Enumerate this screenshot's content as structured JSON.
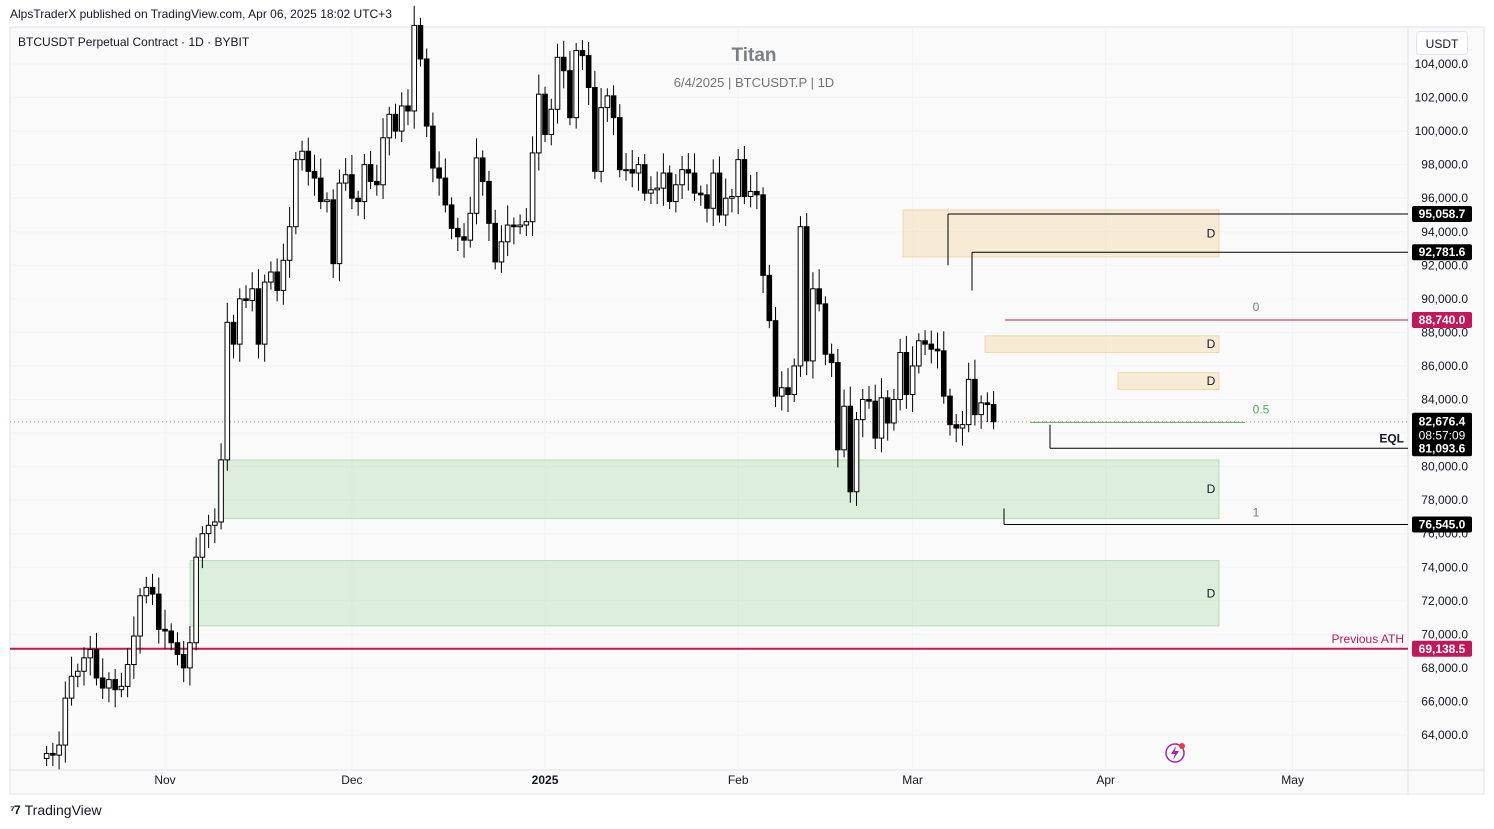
{
  "header": {
    "published": "AlpsTraderX published on TradingView.com, Apr 06, 2025 18:02 UTC+3",
    "symbol": "BTCUSDT Perpetual Contract · 1D · BYBIT",
    "currency": "USDT"
  },
  "watermark": {
    "title": "Titan",
    "subtitle": "6/4/2025 | BTCUSDT.P | 1D"
  },
  "footer": {
    "brand": "TradingView"
  },
  "colors": {
    "up": "#ffffff",
    "down": "#000000",
    "ath": "#c2185b",
    "zone_supply": "#f5d9a8",
    "zone_demand": "#a5d6a7",
    "fib": "#4caf50"
  },
  "chart_data": {
    "type": "candlestick",
    "timeframe": "1D",
    "ylim": [
      62500,
      106500
    ],
    "y_ticks": [
      64000,
      66000,
      68000,
      70000,
      72000,
      74000,
      76000,
      78000,
      80000,
      82000,
      84000,
      86000,
      88000,
      90000,
      92000,
      94000,
      96000,
      98000,
      100000,
      102000,
      104000
    ],
    "y_tick_labels": [
      "64,000.0",
      "66,000.0",
      "68,000.0",
      "70,000.0",
      "72,000.0",
      "74,000.0",
      "76,000.0",
      "78,000.0",
      "80,000.0",
      "82,000.0",
      "84,000.0",
      "86,000.0",
      "88,000.0",
      "90,000.0",
      "92,000.0",
      "94,000.0",
      "96,000.0",
      "98,000.0",
      "100,000.0",
      "102,000.0",
      "104,000.0"
    ],
    "x_ticks": [
      {
        "label": "Nov",
        "day": 0
      },
      {
        "label": "Dec",
        "day": 30
      },
      {
        "label": "2025",
        "day": 61,
        "bold": true
      },
      {
        "label": "Feb",
        "day": 92
      },
      {
        "label": "Mar",
        "day": 120
      },
      {
        "label": "Apr",
        "day": 151
      },
      {
        "label": "May",
        "day": 181
      }
    ],
    "candles_start": "2024-10-13",
    "candles_close": [
      62900,
      62800,
      63400,
      66200,
      67500,
      67800,
      68600,
      69100,
      67400,
      66800,
      67300,
      66700,
      66900,
      68200,
      69900,
      72300,
      72800,
      72400,
      70300,
      70200,
      69500,
      68800,
      68000,
      69500,
      74600,
      76000,
      76500,
      76700,
      80400,
      88600,
      87300,
      90000,
      89900,
      90600,
      87300,
      91000,
      91600,
      90500,
      92300,
      94300,
      98300,
      98800,
      97600,
      97200,
      95800,
      95900,
      92100,
      96900,
      97400,
      96000,
      95800,
      98000,
      97000,
      96800,
      99600,
      101000,
      100000,
      101500,
      101200,
      106300,
      104300,
      100300,
      97800,
      97200,
      95600,
      94200,
      93700,
      93500,
      95100,
      98400,
      97000,
      94500,
      92200,
      93400,
      94400,
      94300,
      94400,
      94600,
      98700,
      102200,
      99800,
      101300,
      104400,
      103600,
      100800,
      104800,
      104500,
      102600,
      97600,
      101400,
      102100,
      100800,
      97700,
      97700,
      97500,
      98000,
      96300,
      96500,
      96600,
      97500,
      95800,
      96800,
      97700,
      97500,
      96300,
      96200,
      95400,
      97500,
      95000,
      96000,
      96100,
      98300,
      96100,
      96400,
      96200,
      91400,
      88700,
      84200,
      84700,
      84300,
      86000,
      94300,
      86300,
      90600,
      89700,
      86700,
      86200,
      81000,
      83600,
      78500,
      82800,
      84000,
      83900,
      81700,
      84100,
      82600,
      84000,
      86800,
      84300,
      86000,
      87500,
      87300,
      87000,
      86900,
      84200,
      82500,
      82300,
      82500,
      85200,
      83100,
      83800,
      83700,
      82676
    ],
    "last_price": "82,676.4",
    "countdown": "08:57:09",
    "price_labels": [
      {
        "label": "95,058.7",
        "price": 95058.7,
        "color": "#000000"
      },
      {
        "label": "92,781.6",
        "price": 92781.6,
        "color": "#000000"
      },
      {
        "label": "88,740.0",
        "price": 88740,
        "color": "#c2185b"
      },
      {
        "label": "81,093.6",
        "price": 81093.6,
        "color": "#000000"
      },
      {
        "label": "76,545.0",
        "price": 76545,
        "color": "#000000"
      },
      {
        "label": "69,138.5",
        "price": 69138.5,
        "color": "#c2185b"
      }
    ],
    "zones": [
      {
        "kind": "supply",
        "label": "D",
        "from": 92500,
        "to": 95300
      },
      {
        "kind": "supply",
        "label": "D",
        "from": 86800,
        "to": 87800
      },
      {
        "kind": "supply",
        "label": "D",
        "from": 84600,
        "to": 85600
      },
      {
        "kind": "demand",
        "label": "D",
        "from": 76900,
        "to": 80400
      },
      {
        "kind": "demand",
        "label": "D",
        "from": 70500,
        "to": 74400
      }
    ],
    "fib_labels": [
      {
        "label": "0",
        "price": 88740
      },
      {
        "label": "0.5",
        "price": 82640
      },
      {
        "label": "1",
        "price": 76545
      }
    ],
    "annotations": {
      "eql": "EQL",
      "previous_ath": "Previous ATH"
    }
  }
}
